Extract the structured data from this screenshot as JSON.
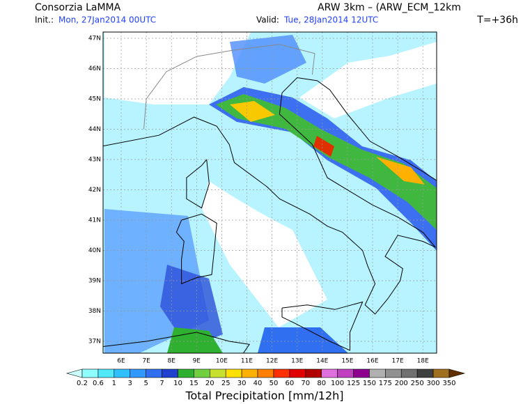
{
  "header": {
    "title": "Consorzia LaMMA",
    "init_label": "Init.:",
    "init_value": "Mon, 27Jan2014 00UTC",
    "valid_label": "Valid:",
    "valid_value": "Tue, 28Jan2014 12UTC",
    "model": "ARW 3km – (ARW_ECM_12km",
    "forecast_time": "T=+36h"
  },
  "map": {
    "lat_labels": [
      "37N",
      "38N",
      "39N",
      "40N",
      "41N",
      "42N",
      "43N",
      "44N",
      "45N",
      "46N",
      "47N"
    ],
    "lon_labels": [
      "6E",
      "7E",
      "8E",
      "9E",
      "10E",
      "11E",
      "12E",
      "13E",
      "14E",
      "15E",
      "16E",
      "17E",
      "18E"
    ]
  },
  "colorbar": {
    "title": "Total Precipitation [mm/12h]",
    "labels": [
      "0.2",
      "0.6",
      "1",
      "3",
      "5",
      "7",
      "10",
      "15",
      "20",
      "25",
      "30",
      "40",
      "50",
      "60",
      "70",
      "80",
      "100",
      "125",
      "150",
      "175",
      "200",
      "250",
      "300",
      "350"
    ],
    "colors": [
      "#c8ffff",
      "#90ffff",
      "#50e8ff",
      "#30c0ff",
      "#3098ff",
      "#3070f0",
      "#2040d0",
      "#30b030",
      "#70d040",
      "#c8e030",
      "#ffe000",
      "#ffb000",
      "#ff8000",
      "#ff3000",
      "#e00000",
      "#b00000",
      "#e070e0",
      "#c040c0",
      "#900090",
      "#b0b0b0",
      "#909090",
      "#707070",
      "#404040",
      "#a07020",
      "#603000"
    ]
  }
}
